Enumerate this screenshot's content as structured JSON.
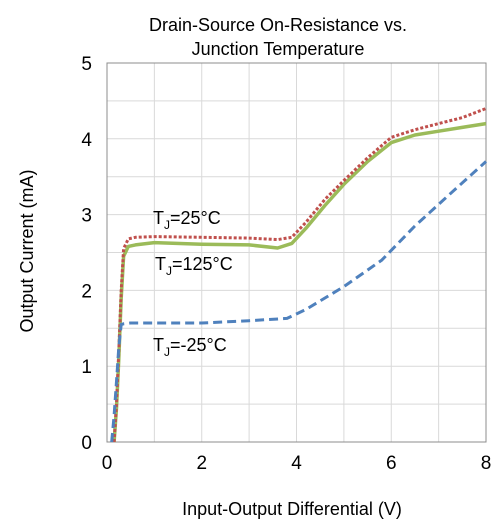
{
  "chart_data": {
    "type": "line",
    "title_line1": "Drain-Source On-Resistance vs.",
    "title_line2": "Junction Temperature",
    "xlabel": "Input-Output Differential (V)",
    "ylabel": "Output Current (mA)",
    "xlim": [
      0,
      8
    ],
    "ylim": [
      0,
      5
    ],
    "xticks": [
      "0",
      "2",
      "4",
      "6",
      "8"
    ],
    "yticks": [
      "0",
      "1",
      "2",
      "3",
      "4",
      "5"
    ],
    "grid": true,
    "series": [
      {
        "label_main": "T",
        "label_sub": "J",
        "label_rest": "=25°C",
        "color": "#c0504d",
        "style": "dotted",
        "x": [
          0.15,
          0.2,
          0.25,
          0.3,
          0.35,
          0.45,
          0.6,
          1.0,
          2.0,
          3.0,
          3.6,
          3.9,
          4.2,
          4.6,
          5.0,
          5.5,
          6.0,
          6.5,
          7.0,
          7.5,
          8.0
        ],
        "y": [
          0.0,
          0.5,
          1.2,
          2.0,
          2.55,
          2.68,
          2.7,
          2.71,
          2.7,
          2.69,
          2.67,
          2.7,
          2.9,
          3.2,
          3.45,
          3.75,
          4.02,
          4.12,
          4.2,
          4.28,
          4.4
        ]
      },
      {
        "label_main": "T",
        "label_sub": "J",
        "label_rest": "=125°C",
        "color": "#9bbb59",
        "style": "solid",
        "x": [
          0.15,
          0.2,
          0.25,
          0.3,
          0.35,
          0.45,
          0.6,
          1.0,
          2.0,
          3.0,
          3.6,
          3.9,
          4.2,
          4.6,
          5.0,
          5.5,
          6.0,
          6.5,
          7.0,
          7.5,
          8.0
        ],
        "y": [
          0.0,
          0.45,
          1.1,
          1.9,
          2.45,
          2.58,
          2.6,
          2.63,
          2.61,
          2.6,
          2.56,
          2.62,
          2.82,
          3.12,
          3.4,
          3.7,
          3.95,
          4.05,
          4.1,
          4.15,
          4.2
        ]
      },
      {
        "label_main": "T",
        "label_sub": "J",
        "label_rest": "=-25°C",
        "color": "#4f81bd",
        "style": "dashed",
        "x": [
          0.1,
          0.15,
          0.2,
          0.25,
          0.3,
          0.35,
          0.5,
          1.0,
          2.0,
          3.0,
          3.8,
          4.2,
          5.0,
          5.8,
          6.5,
          7.2,
          8.0
        ],
        "y": [
          0.0,
          0.35,
          0.8,
          1.25,
          1.55,
          1.56,
          1.57,
          1.57,
          1.57,
          1.6,
          1.63,
          1.75,
          2.05,
          2.4,
          2.85,
          3.25,
          3.7
        ]
      }
    ]
  }
}
